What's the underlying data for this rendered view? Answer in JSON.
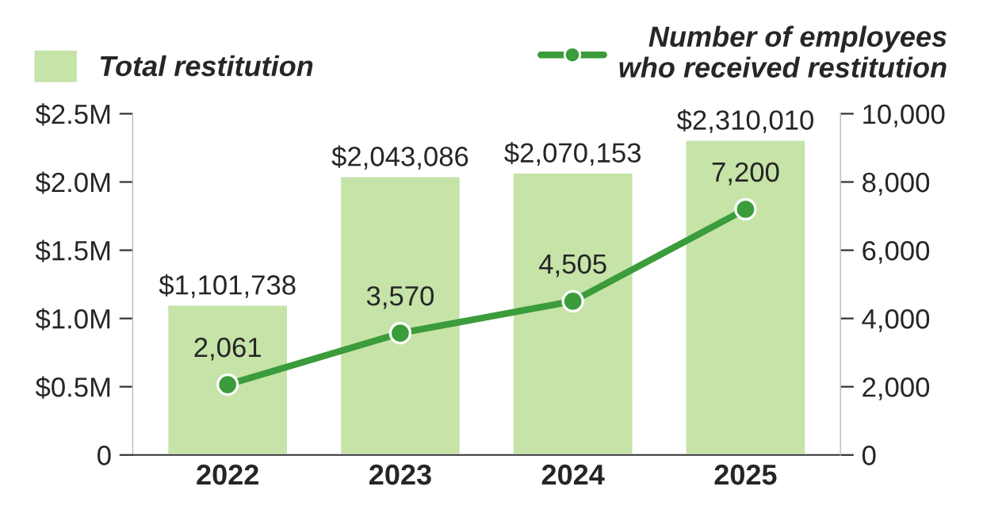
{
  "chart_data": {
    "type": "bar",
    "categories": [
      "2022",
      "2023",
      "2024",
      "2025"
    ],
    "series": [
      {
        "name": "Total restitution",
        "type": "bar",
        "color": "#c6e3a8",
        "values": [
          1101738,
          2043086,
          2070153,
          2310010
        ],
        "value_labels": [
          "$1,101,738",
          "$2,043,086",
          "$2,070,153",
          "$2,310,010"
        ]
      },
      {
        "name": "Number of employees\nwho received restitution",
        "type": "line",
        "axis": "y2",
        "color": "#3a9c3a",
        "marker": "circle",
        "values": [
          2061,
          3570,
          4505,
          7200
        ],
        "value_labels": [
          "2,061",
          "3,570",
          "4,505",
          "7,200"
        ]
      }
    ],
    "ylim": [
      0,
      2500000
    ],
    "yticks": [
      {
        "value": 0,
        "label": "0"
      },
      {
        "value": 500000,
        "label": "$0.5M"
      },
      {
        "value": 1000000,
        "label": "$1.0M"
      },
      {
        "value": 1500000,
        "label": "$1.5M"
      },
      {
        "value": 2000000,
        "label": "$2.0M"
      },
      {
        "value": 2500000,
        "label": "$2.5M"
      }
    ],
    "y2lim": [
      0,
      10000
    ],
    "y2ticks": [
      {
        "value": 0,
        "label": "0"
      },
      {
        "value": 2000,
        "label": "2,000"
      },
      {
        "value": 4000,
        "label": "4,000"
      },
      {
        "value": 6000,
        "label": "6,000"
      },
      {
        "value": 8000,
        "label": "8,000"
      },
      {
        "value": 10000,
        "label": "10,000"
      }
    ],
    "grid": false,
    "legend": "top"
  }
}
